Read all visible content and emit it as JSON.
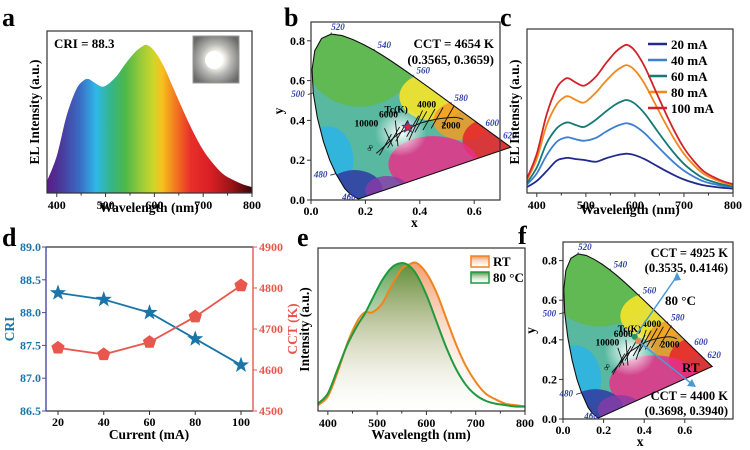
{
  "panels": {
    "a": {
      "label": "a"
    },
    "b": {
      "label": "b"
    },
    "c": {
      "label": "c"
    },
    "d": {
      "label": "d"
    },
    "e": {
      "label": "e"
    },
    "f": {
      "label": "f"
    }
  },
  "chart_data": [
    {
      "id": "a",
      "type": "area",
      "title": "",
      "annotation": "CRI = 88.3",
      "inset": "photo of glowing white LED",
      "xlabel": "Wavelength (nm)",
      "ylabel": "EL Intensity (a.u.)",
      "xlim": [
        380,
        800
      ],
      "xticks": [
        "400",
        "500",
        "600",
        "700",
        "800"
      ],
      "fill": "visible spectrum colors",
      "x": [
        380,
        400,
        420,
        440,
        455,
        465,
        480,
        497,
        520,
        540,
        560,
        575,
        585,
        600,
        620,
        640,
        660,
        680,
        700,
        720,
        740,
        760,
        780,
        800
      ],
      "y": [
        0.08,
        0.25,
        0.52,
        0.7,
        0.76,
        0.77,
        0.74,
        0.72,
        0.78,
        0.87,
        0.95,
        0.99,
        1.0,
        0.96,
        0.85,
        0.7,
        0.55,
        0.41,
        0.29,
        0.2,
        0.13,
        0.09,
        0.06,
        0.04
      ]
    },
    {
      "id": "b",
      "type": "scatter",
      "subtype": "CIE 1931 chromaticity diagram",
      "xlabel": "x",
      "ylabel": "y",
      "xlim": [
        0,
        0.75
      ],
      "ylim": [
        0,
        0.85
      ],
      "xticks": [
        "0.0",
        "0.2",
        "0.4",
        "0.6"
      ],
      "yticks": [
        "0.0",
        "0.2",
        "0.4",
        "0.6",
        "0.8"
      ],
      "annotation_line1": "CCT = 4654 K",
      "annotation_line2": "(0.3565, 0.3659)",
      "planckian_label": "Tc(K)",
      "planckian_marks": [
        "10000",
        "6000",
        "4000",
        "2000",
        "∞"
      ],
      "wavelength_labels": [
        "460",
        "480",
        "500",
        "520",
        "540",
        "560",
        "580",
        "600",
        "620"
      ],
      "point": {
        "x": 0.3565,
        "y": 0.3659,
        "marker": "star",
        "color": "#d62a3a"
      }
    },
    {
      "id": "c",
      "type": "line",
      "xlabel": "Wavelength (nm)",
      "ylabel": "EL Intensity (a.u.)",
      "xlim": [
        380,
        800
      ],
      "xticks": [
        "400",
        "500",
        "600",
        "700",
        "800"
      ],
      "legend_position": "top-right",
      "x": [
        380,
        400,
        420,
        440,
        455,
        465,
        480,
        497,
        520,
        540,
        560,
        575,
        585,
        600,
        620,
        640,
        660,
        680,
        700,
        720,
        740,
        760,
        780,
        800
      ],
      "shape": [
        0.08,
        0.25,
        0.52,
        0.7,
        0.76,
        0.77,
        0.74,
        0.72,
        0.78,
        0.87,
        0.95,
        0.99,
        1.0,
        0.96,
        0.85,
        0.7,
        0.55,
        0.41,
        0.29,
        0.2,
        0.13,
        0.09,
        0.06,
        0.04
      ],
      "series": [
        {
          "name": "20 mA",
          "color": "#1f2a8c",
          "peak": 0.25,
          "dip_ratio": 0.92
        },
        {
          "name": "40 mA",
          "color": "#3d7fd1",
          "peak": 0.46,
          "dip_ratio": 0.82
        },
        {
          "name": "60 mA",
          "color": "#137a78",
          "peak": 0.62,
          "dip_ratio": 0.78
        },
        {
          "name": "80 mA",
          "color": "#f0891d",
          "peak": 0.86,
          "dip_ratio": 0.78
        },
        {
          "name": "100 mA",
          "color": "#d2222a",
          "peak": 1.0,
          "dip_ratio": 0.8
        }
      ]
    },
    {
      "id": "d",
      "type": "line",
      "subtype": "dual-axis",
      "xlabel": "Current (mA)",
      "ylabel_left": "CRI",
      "ylabel_right": "CCT (K)",
      "categories": [
        20,
        40,
        60,
        80,
        100
      ],
      "xticks": [
        "20",
        "40",
        "60",
        "80",
        "100"
      ],
      "ylim_left": [
        86.5,
        89.0
      ],
      "yticks_left": [
        "86.5",
        "87.0",
        "87.5",
        "88.0",
        "88.5",
        "89.0"
      ],
      "ylim_right": [
        4500,
        4900
      ],
      "yticks_right": [
        "4500",
        "4600",
        "4700",
        "4800",
        "4900"
      ],
      "series": [
        {
          "name": "CRI",
          "axis": "left",
          "marker": "star",
          "color": "#1a75a8",
          "values": [
            88.3,
            88.2,
            88.0,
            87.6,
            87.2
          ]
        },
        {
          "name": "CCT",
          "axis": "right",
          "marker": "pentagon",
          "color": "#e8574d",
          "values": [
            4654,
            4638,
            4668,
            4730,
            4806
          ]
        }
      ]
    },
    {
      "id": "e",
      "type": "area",
      "xlabel": "Wavelength (nm)",
      "ylabel": "Intensity (a.u.)",
      "xlim": [
        380,
        800
      ],
      "xticks": [
        "400",
        "500",
        "600",
        "700",
        "800"
      ],
      "legend_position": "top-right",
      "x": [
        380,
        400,
        420,
        440,
        460,
        475,
        490,
        510,
        530,
        550,
        565,
        580,
        600,
        620,
        640,
        660,
        680,
        700,
        720,
        740,
        760,
        780,
        800
      ],
      "series": [
        {
          "name": "RT",
          "color": "#f0841d",
          "y": [
            0.02,
            0.08,
            0.25,
            0.45,
            0.6,
            0.66,
            0.66,
            0.72,
            0.85,
            0.96,
            0.99,
            1.0,
            0.93,
            0.8,
            0.62,
            0.44,
            0.29,
            0.18,
            0.1,
            0.06,
            0.03,
            0.02,
            0.01
          ]
        },
        {
          "name": "80 °C",
          "color": "#1f9a3e",
          "y": [
            0.03,
            0.1,
            0.27,
            0.44,
            0.57,
            0.65,
            0.75,
            0.88,
            0.97,
            1.0,
            0.98,
            0.92,
            0.78,
            0.6,
            0.42,
            0.27,
            0.16,
            0.09,
            0.05,
            0.03,
            0.02,
            0.01,
            0.01
          ]
        }
      ]
    },
    {
      "id": "f",
      "type": "scatter",
      "subtype": "CIE 1931 chromaticity diagram",
      "xlabel": "x",
      "ylabel": "y",
      "xlim": [
        0,
        0.75
      ],
      "ylim": [
        0,
        0.85
      ],
      "xticks": [
        "0.0",
        "0.2",
        "0.4",
        "0.6"
      ],
      "yticks": [
        "0.0",
        "0.2",
        "0.4",
        "0.6",
        "0.8"
      ],
      "planckian_label": "Tc(K)",
      "planckian_marks": [
        "10000",
        "6000",
        "4000",
        "2000",
        "∞"
      ],
      "wavelength_labels": [
        "460",
        "480",
        "500",
        "520",
        "540",
        "560",
        "580",
        "600",
        "620"
      ],
      "points": [
        {
          "name": "80 °C",
          "x": 0.3535,
          "y": 0.4146,
          "color": "#1f9a5e",
          "cct_line1": "CCT = 4925 K",
          "cct_line2": "(0.3535, 0.4146)"
        },
        {
          "name": "RT",
          "x": 0.3698,
          "y": 0.394,
          "color": "#e8884d",
          "cct_line1": "CCT = 4400 K",
          "cct_line2": "(0.3698, 0.3940)"
        }
      ],
      "arrow_color": "#4a9ad8"
    }
  ]
}
